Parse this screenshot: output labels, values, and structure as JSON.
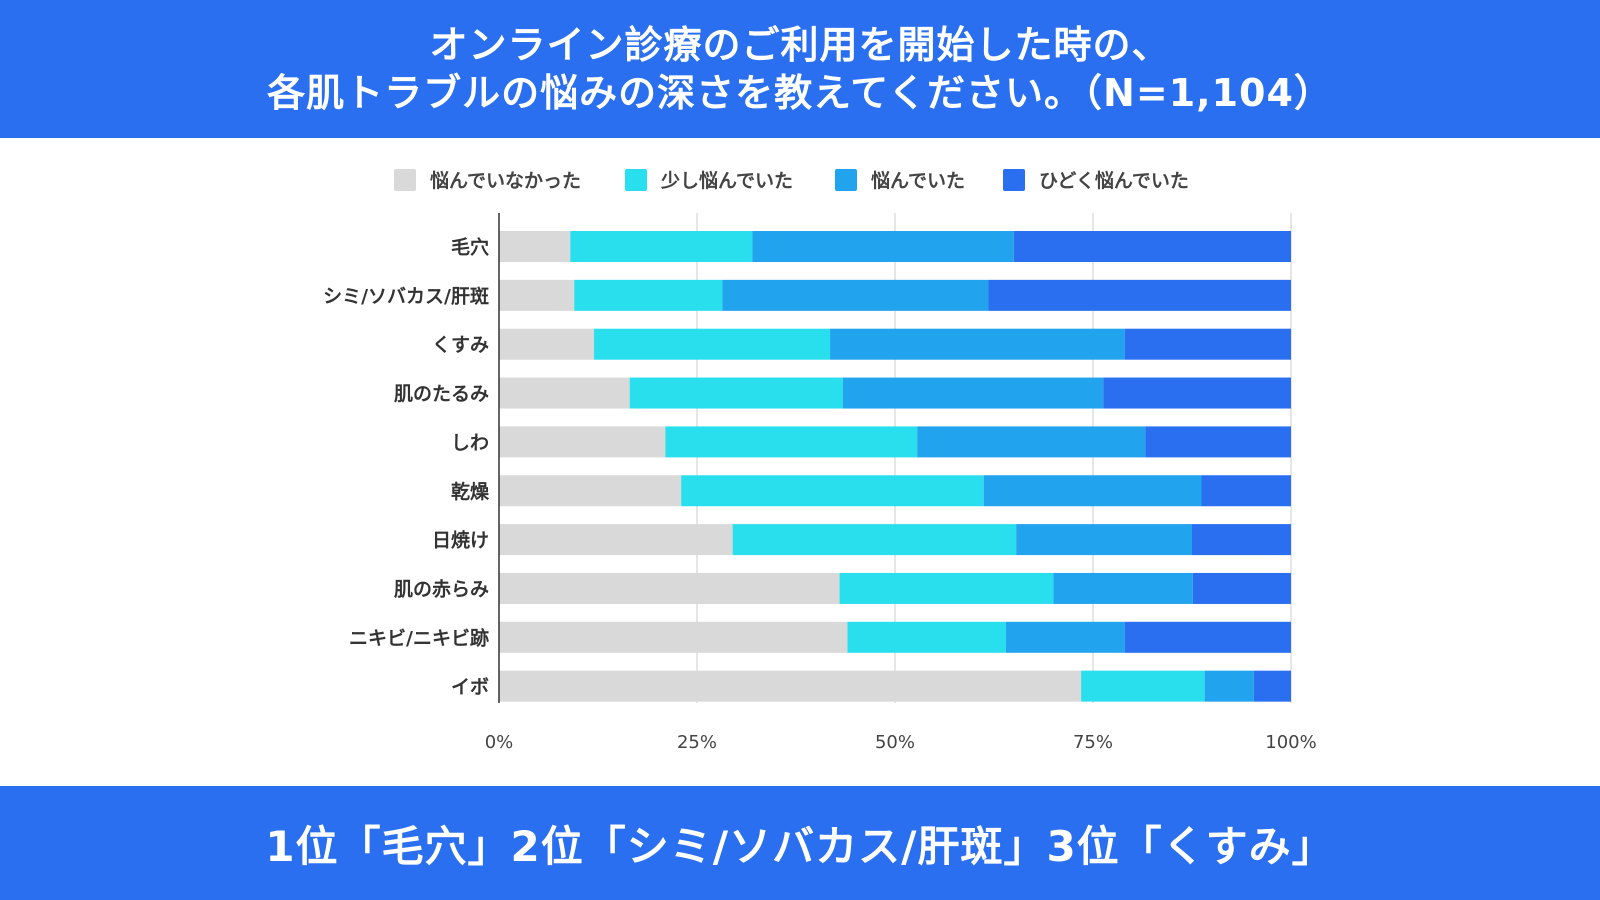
{
  "header": {
    "line1": "オンライン診療のご利用を開始した時の、",
    "line2": "各肌トラブルの悩みの深さを教えてください。（N=1,104）"
  },
  "footer": {
    "text": "1位「毛穴」2位「シミ/ソバカス/肝斑」3位「くすみ」"
  },
  "chart_data": {
    "type": "bar",
    "orientation": "horizontal",
    "stacked": true,
    "title": "オンライン診療のご利用を開始した時の、各肌トラブルの悩みの深さを教えてください。（N=1,104）",
    "xlabel": "",
    "ylabel": "",
    "xlim": [
      0,
      100
    ],
    "ticks": [
      "0%",
      "25%",
      "50%",
      "75%",
      "100%"
    ],
    "tick_values": [
      0,
      25,
      50,
      75,
      100
    ],
    "grid": true,
    "legend_position": "top",
    "categories": [
      "毛穴",
      "シミ/ソバカス/肝斑",
      "くすみ",
      "肌のたるみ",
      "しわ",
      "乾燥",
      "日焼け",
      "肌の赤らみ",
      "ニキビ/ニキビ跡",
      "イボ"
    ],
    "series": [
      {
        "name": "悩んでいなかった",
        "color": "#d9d9d9",
        "values": [
          9.0,
          9.5,
          12.0,
          16.5,
          21.0,
          23.0,
          29.5,
          43.0,
          44.0,
          73.5
        ]
      },
      {
        "name": "少し悩んでいた",
        "color": "#29dfee",
        "values": [
          23.0,
          18.7,
          29.8,
          26.9,
          31.8,
          38.2,
          35.8,
          27.0,
          20.0,
          15.6
        ]
      },
      {
        "name": "悩んでいた",
        "color": "#22a3ee",
        "values": [
          33.0,
          33.6,
          37.2,
          32.9,
          28.8,
          27.5,
          22.2,
          17.6,
          15.0,
          6.2
        ]
      },
      {
        "name": "ひどく悩んでいた",
        "color": "#2a6ff0",
        "values": [
          35.0,
          38.2,
          21.0,
          23.7,
          18.4,
          11.3,
          12.5,
          12.4,
          21.0,
          4.7
        ]
      }
    ]
  }
}
